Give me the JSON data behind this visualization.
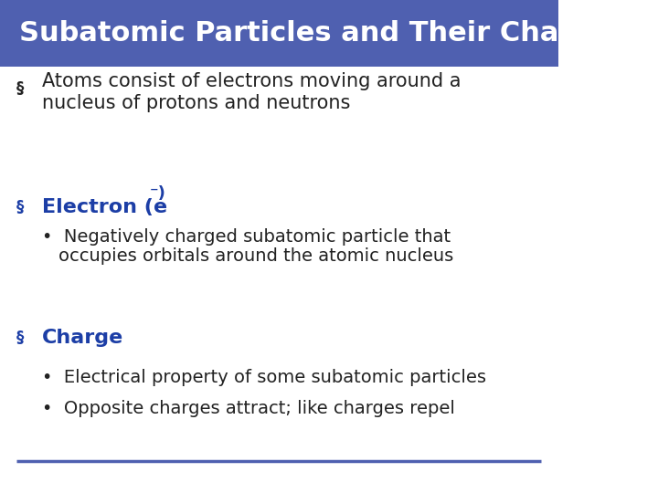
{
  "title": "Subatomic Particles and Their Charge",
  "title_bg_color": "#4F60B0",
  "title_text_color": "#FFFFFF",
  "title_fontsize": 22,
  "slide_bg_color": "#FFFFFF",
  "header_color": "#1C3EA6",
  "body_color": "#222222",
  "footer_line_color": "#4F60B0",
  "body_fontsize": 15,
  "header_fontsize": 16,
  "sub_bullet_fontsize": 14,
  "title_bar_height": 0.135,
  "bullet1_line1": "Atoms consist of electrons moving around a",
  "bullet1_line2": "nucleus of protons and neutrons",
  "bullet2_header_pre": "Electron (e",
  "bullet2_header_sup": "⁻)",
  "bullet2_sub_line1": "Negatively charged subatomic particle that",
  "bullet2_sub_line2": "occupies orbitals around the atomic nucleus",
  "bullet3_header": "Charge",
  "bullet3_sub1": "Electrical property of some subatomic particles",
  "bullet3_sub2": "Opposite charges attract; like charges repel",
  "bullet_marker": "§",
  "sub_bullet_marker": "•"
}
